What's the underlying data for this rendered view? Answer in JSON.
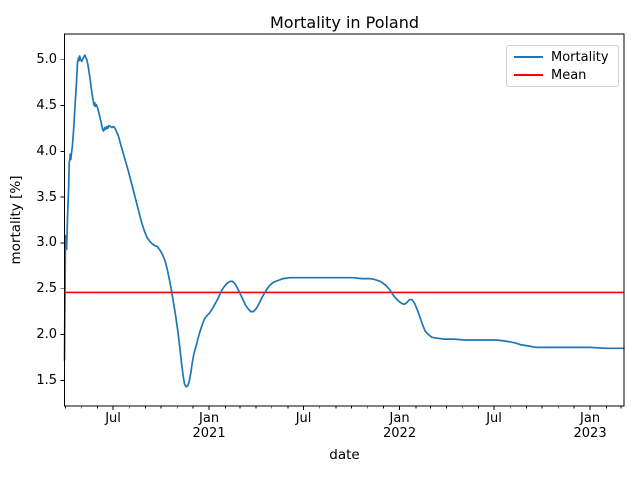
{
  "window": {
    "kind": "matplotlib-figure",
    "background": "#ffffff"
  },
  "chart_data": {
    "type": "line",
    "title": "Mortality in Poland",
    "xlabel": "date",
    "ylabel": "mortality [%]",
    "x_domain": [
      "2020-03-30",
      "2023-03-07"
    ],
    "ylim": [
      1.22,
      5.28
    ],
    "grid": false,
    "legend_position": "upper right",
    "colors": {
      "mortality": "#1f77b4",
      "mean": "#ff0000",
      "spine": "#000000",
      "text": "#000000"
    },
    "mean_value": 2.46,
    "y_ticks": [
      {
        "value": 1.5,
        "label": "1.5"
      },
      {
        "value": 2.0,
        "label": "2.0"
      },
      {
        "value": 2.5,
        "label": "2.5"
      },
      {
        "value": 3.0,
        "label": "3.0"
      },
      {
        "value": 3.5,
        "label": "3.5"
      },
      {
        "value": 4.0,
        "label": "4.0"
      },
      {
        "value": 4.5,
        "label": "4.5"
      },
      {
        "value": 5.0,
        "label": "5.0"
      }
    ],
    "x_major_ticks": [
      {
        "date": "2020-07-01",
        "line1": "Jul",
        "line2": ""
      },
      {
        "date": "2021-01-01",
        "line1": "Jan",
        "line2": "2021"
      },
      {
        "date": "2021-07-01",
        "line1": "Jul",
        "line2": ""
      },
      {
        "date": "2022-01-01",
        "line1": "Jan",
        "line2": "2022"
      },
      {
        "date": "2022-07-01",
        "line1": "Jul",
        "line2": ""
      },
      {
        "date": "2023-01-01",
        "line1": "Jan",
        "line2": "2023"
      }
    ],
    "series": [
      {
        "name": "Mortality",
        "color": "#1f77b4",
        "points": [
          [
            "2020-03-30",
            1.72
          ],
          [
            "2020-03-31",
            2.4
          ],
          [
            "2020-04-01",
            3.08
          ],
          [
            "2020-04-02",
            2.98
          ],
          [
            "2020-04-03",
            2.93
          ],
          [
            "2020-04-05",
            3.3
          ],
          [
            "2020-04-07",
            3.62
          ],
          [
            "2020-04-08",
            3.88
          ],
          [
            "2020-04-09",
            3.9
          ],
          [
            "2020-04-10",
            3.97
          ],
          [
            "2020-04-11",
            3.91
          ],
          [
            "2020-04-12",
            3.96
          ],
          [
            "2020-04-14",
            4.05
          ],
          [
            "2020-04-16",
            4.2
          ],
          [
            "2020-04-18",
            4.38
          ],
          [
            "2020-04-20",
            4.58
          ],
          [
            "2020-04-22",
            4.75
          ],
          [
            "2020-04-24",
            4.97
          ],
          [
            "2020-04-26",
            5.02
          ],
          [
            "2020-04-27",
            4.99
          ],
          [
            "2020-04-28",
            5.04
          ],
          [
            "2020-04-30",
            5.0
          ],
          [
            "2020-05-02",
            4.98
          ],
          [
            "2020-05-04",
            5.01
          ],
          [
            "2020-05-06",
            5.03
          ],
          [
            "2020-05-08",
            5.05
          ],
          [
            "2020-05-10",
            5.02
          ],
          [
            "2020-05-12",
            5.0
          ],
          [
            "2020-05-14",
            4.94
          ],
          [
            "2020-05-16",
            4.87
          ],
          [
            "2020-05-18",
            4.79
          ],
          [
            "2020-05-20",
            4.7
          ],
          [
            "2020-05-22",
            4.62
          ],
          [
            "2020-05-24",
            4.55
          ],
          [
            "2020-05-26",
            4.5
          ],
          [
            "2020-05-27",
            4.53
          ],
          [
            "2020-05-28",
            4.49
          ],
          [
            "2020-05-30",
            4.51
          ],
          [
            "2020-06-01",
            4.48
          ],
          [
            "2020-06-03",
            4.44
          ],
          [
            "2020-06-05",
            4.39
          ],
          [
            "2020-06-08",
            4.32
          ],
          [
            "2020-06-11",
            4.24
          ],
          [
            "2020-06-13",
            4.22
          ],
          [
            "2020-06-15",
            4.26
          ],
          [
            "2020-06-17",
            4.24
          ],
          [
            "2020-06-19",
            4.27
          ],
          [
            "2020-06-21",
            4.25
          ],
          [
            "2020-06-23",
            4.28
          ],
          [
            "2020-06-26",
            4.27
          ],
          [
            "2020-06-29",
            4.26
          ],
          [
            "2020-07-02",
            4.27
          ],
          [
            "2020-07-05",
            4.25
          ],
          [
            "2020-07-08",
            4.21
          ],
          [
            "2020-07-11",
            4.17
          ],
          [
            "2020-07-15",
            4.09
          ],
          [
            "2020-07-19",
            4.01
          ],
          [
            "2020-07-23",
            3.93
          ],
          [
            "2020-07-27",
            3.85
          ],
          [
            "2020-07-31",
            3.77
          ],
          [
            "2020-08-05",
            3.66
          ],
          [
            "2020-08-10",
            3.55
          ],
          [
            "2020-08-15",
            3.44
          ],
          [
            "2020-08-20",
            3.33
          ],
          [
            "2020-08-25",
            3.22
          ],
          [
            "2020-08-30",
            3.13
          ],
          [
            "2020-09-04",
            3.06
          ],
          [
            "2020-09-09",
            3.02
          ],
          [
            "2020-09-14",
            2.99
          ],
          [
            "2020-09-19",
            2.97
          ],
          [
            "2020-09-24",
            2.96
          ],
          [
            "2020-09-29",
            2.92
          ],
          [
            "2020-10-04",
            2.87
          ],
          [
            "2020-10-09",
            2.8
          ],
          [
            "2020-10-13",
            2.71
          ],
          [
            "2020-10-17",
            2.6
          ],
          [
            "2020-10-21",
            2.48
          ],
          [
            "2020-10-25",
            2.34
          ],
          [
            "2020-10-29",
            2.2
          ],
          [
            "2020-11-02",
            2.04
          ],
          [
            "2020-11-06",
            1.86
          ],
          [
            "2020-11-09",
            1.7
          ],
          [
            "2020-11-12",
            1.56
          ],
          [
            "2020-11-15",
            1.46
          ],
          [
            "2020-11-18",
            1.43
          ],
          [
            "2020-11-21",
            1.44
          ],
          [
            "2020-11-24",
            1.49
          ],
          [
            "2020-11-27",
            1.58
          ],
          [
            "2020-11-30",
            1.7
          ],
          [
            "2020-12-03",
            1.79
          ],
          [
            "2020-12-07",
            1.87
          ],
          [
            "2020-12-11",
            1.96
          ],
          [
            "2020-12-15",
            2.04
          ],
          [
            "2020-12-19",
            2.11
          ],
          [
            "2020-12-23",
            2.17
          ],
          [
            "2020-12-27",
            2.2
          ],
          [
            "2021-01-01",
            2.23
          ],
          [
            "2021-01-06",
            2.27
          ],
          [
            "2021-01-11",
            2.32
          ],
          [
            "2021-01-16",
            2.37
          ],
          [
            "2021-01-21",
            2.43
          ],
          [
            "2021-01-26",
            2.49
          ],
          [
            "2021-01-31",
            2.53
          ],
          [
            "2021-02-05",
            2.56
          ],
          [
            "2021-02-10",
            2.58
          ],
          [
            "2021-02-15",
            2.58
          ],
          [
            "2021-02-20",
            2.55
          ],
          [
            "2021-02-25",
            2.5
          ],
          [
            "2021-03-02",
            2.44
          ],
          [
            "2021-03-07",
            2.38
          ],
          [
            "2021-03-12",
            2.32
          ],
          [
            "2021-03-17",
            2.28
          ],
          [
            "2021-03-22",
            2.25
          ],
          [
            "2021-03-27",
            2.25
          ],
          [
            "2021-04-01",
            2.28
          ],
          [
            "2021-04-07",
            2.34
          ],
          [
            "2021-04-13",
            2.41
          ],
          [
            "2021-04-19",
            2.47
          ],
          [
            "2021-04-26",
            2.53
          ],
          [
            "2021-05-04",
            2.57
          ],
          [
            "2021-05-13",
            2.59
          ],
          [
            "2021-05-23",
            2.61
          ],
          [
            "2021-06-04",
            2.62
          ],
          [
            "2021-06-20",
            2.62
          ],
          [
            "2021-07-10",
            2.62
          ],
          [
            "2021-08-01",
            2.62
          ],
          [
            "2021-08-25",
            2.62
          ],
          [
            "2021-09-15",
            2.62
          ],
          [
            "2021-10-05",
            2.62
          ],
          [
            "2021-10-20",
            2.61
          ],
          [
            "2021-11-05",
            2.61
          ],
          [
            "2021-11-15",
            2.6
          ],
          [
            "2021-11-25",
            2.58
          ],
          [
            "2021-12-05",
            2.54
          ],
          [
            "2021-12-13",
            2.49
          ],
          [
            "2021-12-21",
            2.42
          ],
          [
            "2021-12-29",
            2.37
          ],
          [
            "2022-01-05",
            2.34
          ],
          [
            "2022-01-10",
            2.33
          ],
          [
            "2022-01-15",
            2.35
          ],
          [
            "2022-01-20",
            2.38
          ],
          [
            "2022-01-25",
            2.38
          ],
          [
            "2022-01-30",
            2.34
          ],
          [
            "2022-02-04",
            2.27
          ],
          [
            "2022-02-09",
            2.19
          ],
          [
            "2022-02-14",
            2.11
          ],
          [
            "2022-02-19",
            2.04
          ],
          [
            "2022-02-25",
            2.0
          ],
          [
            "2022-03-04",
            1.97
          ],
          [
            "2022-03-14",
            1.96
          ],
          [
            "2022-03-28",
            1.95
          ],
          [
            "2022-04-15",
            1.95
          ],
          [
            "2022-05-05",
            1.94
          ],
          [
            "2022-05-25",
            1.94
          ],
          [
            "2022-06-15",
            1.94
          ],
          [
            "2022-07-05",
            1.94
          ],
          [
            "2022-07-20",
            1.93
          ],
          [
            "2022-08-01",
            1.92
          ],
          [
            "2022-08-10",
            1.91
          ],
          [
            "2022-08-20",
            1.89
          ],
          [
            "2022-08-30",
            1.88
          ],
          [
            "2022-09-10",
            1.87
          ],
          [
            "2022-09-20",
            1.86
          ],
          [
            "2022-10-05",
            1.86
          ],
          [
            "2022-11-01",
            1.86
          ],
          [
            "2022-12-01",
            1.86
          ],
          [
            "2023-01-01",
            1.86
          ],
          [
            "2023-02-01",
            1.85
          ],
          [
            "2023-03-07",
            1.85
          ]
        ]
      }
    ],
    "legend": {
      "items": [
        {
          "label": "Mortality",
          "color": "#1f77b4"
        },
        {
          "label": "Mean",
          "color": "#ff0000"
        }
      ]
    }
  }
}
